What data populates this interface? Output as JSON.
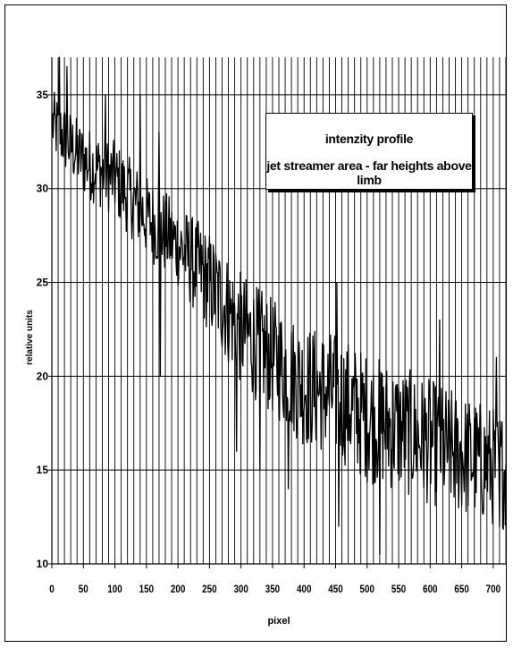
{
  "chart_data": {
    "type": "line",
    "title": "intenzity profile",
    "subtitle": "jet streamer area - far heights above limb",
    "xlabel": "pixel",
    "ylabel": "relative units",
    "xlim": [
      0,
      720
    ],
    "ylim": [
      10,
      37
    ],
    "x_ticks": [
      0,
      50,
      100,
      150,
      200,
      250,
      300,
      350,
      400,
      450,
      500,
      550,
      600,
      650,
      700
    ],
    "y_ticks": [
      10,
      15,
      20,
      25,
      30,
      35
    ],
    "x_minor_gridline_step": 10,
    "grid": true,
    "legend_position": "top-right",
    "series_color": "#000000",
    "trend": [
      [
        0,
        33.5
      ],
      [
        50,
        31.5
      ],
      [
        100,
        30.5
      ],
      [
        150,
        28.5
      ],
      [
        200,
        27.0
      ],
      [
        250,
        25.0
      ],
      [
        300,
        22.5
      ],
      [
        350,
        21.0
      ],
      [
        400,
        19.5
      ],
      [
        450,
        19.0
      ],
      [
        500,
        17.8
      ],
      [
        550,
        17.2
      ],
      [
        600,
        16.5
      ],
      [
        650,
        15.8
      ],
      [
        700,
        15.2
      ],
      [
        720,
        15.0
      ]
    ],
    "noise_amplitude": [
      [
        0,
        1.8
      ],
      [
        200,
        2.3
      ],
      [
        280,
        3.0
      ],
      [
        500,
        3.5
      ],
      [
        720,
        3.2
      ]
    ],
    "spikes": [
      [
        12,
        37
      ],
      [
        24,
        36.5
      ],
      [
        85,
        35
      ],
      [
        140,
        35
      ],
      [
        170,
        33
      ],
      [
        172,
        20
      ],
      [
        293,
        16
      ],
      [
        330,
        15
      ],
      [
        375,
        14
      ],
      [
        452,
        25
      ],
      [
        455,
        12
      ],
      [
        520,
        10.5
      ],
      [
        615,
        23
      ],
      [
        705,
        21
      ],
      [
        710,
        12
      ]
    ]
  }
}
